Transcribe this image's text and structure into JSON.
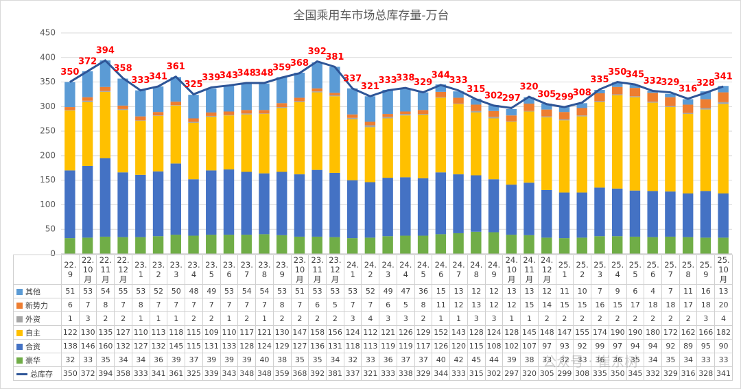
{
  "chart_data": {
    "type": "bar",
    "stacked": true,
    "title": "全国乘用车市场总库存量-万台",
    "watermark": "公众号 · 崔东树",
    "categories": [
      "22.9",
      "22.10月",
      "22.11月",
      "22.12月",
      "23.1",
      "23.2",
      "23.3",
      "23.4",
      "23.5",
      "23.6",
      "23.7",
      "23.8",
      "23.9",
      "23.10月",
      "23.11月",
      "23.12月",
      "24.1",
      "24.2",
      "24.3",
      "24.4",
      "24.5",
      "24.6",
      "24.7",
      "24.8",
      "24.9",
      "24.10月",
      "24.11月",
      "24.12月",
      "25.1",
      "25.2",
      "25.3",
      "25.4",
      "25.5",
      "25.6",
      "25.7",
      "25.8",
      "25.9",
      "25.10月"
    ],
    "ylim": [
      0,
      450
    ],
    "yticks": [
      0,
      50,
      100,
      150,
      200,
      250,
      300,
      350,
      400,
      450
    ],
    "grid": true,
    "series": [
      {
        "name": "其他",
        "color": "#5b9bd5",
        "values": [
          51,
          53,
          54,
          55,
          53,
          52,
          50,
          48,
          49,
          53,
          54,
          54,
          53,
          51,
          53,
          53,
          53,
          52,
          49,
          47,
          36,
          15,
          13,
          12,
          12,
          13,
          13,
          12,
          11,
          10,
          7,
          9,
          6,
          4,
          7,
          11,
          16,
          13
        ]
      },
      {
        "name": "新势力",
        "color": "#ed7d31",
        "values": [
          6,
          7,
          8,
          7,
          8,
          7,
          7,
          7,
          7,
          7,
          7,
          7,
          8,
          7,
          6,
          5,
          7,
          7,
          6,
          5,
          8,
          11,
          12,
          13,
          12,
          12,
          15,
          14,
          15,
          15,
          16,
          15,
          17,
          18,
          18,
          17,
          18,
          20
        ]
      },
      {
        "name": "外资",
        "color": "#a5a5a5",
        "values": [
          1,
          3,
          2,
          2,
          1,
          1,
          1,
          2,
          2,
          1,
          2,
          1,
          2,
          2,
          2,
          2,
          3,
          4,
          3,
          3,
          2,
          1,
          1,
          3,
          3,
          1,
          1,
          2,
          2,
          2,
          2,
          2,
          2,
          2,
          2,
          2,
          3,
          4
        ]
      },
      {
        "name": "自主",
        "color": "#ffc000",
        "values": [
          122,
          130,
          135,
          127,
          110,
          113,
          118,
          115,
          109,
          110,
          117,
          121,
          130,
          147,
          158,
          156,
          124,
          112,
          121,
          126,
          129,
          152,
          143,
          128,
          124,
          128,
          145,
          148,
          147,
          155,
          174,
          190,
          190,
          180,
          172,
          162,
          166,
          182
        ]
      },
      {
        "name": "合资",
        "color": "#4472c4",
        "values": [
          138,
          146,
          160,
          132,
          127,
          132,
          145,
          115,
          131,
          133,
          128,
          124,
          129,
          127,
          136,
          131,
          118,
          113,
          119,
          119,
          117,
          126,
          120,
          115,
          108,
          102,
          107,
          97,
          93,
          92,
          99,
          97,
          94,
          94,
          92,
          89,
          95,
          90
        ]
      },
      {
        "name": "豪华",
        "color": "#70ad47",
        "values": [
          32,
          33,
          35,
          34,
          34,
          36,
          39,
          37,
          39,
          39,
          39,
          40,
          38,
          35,
          35,
          34,
          32,
          33,
          36,
          37,
          37,
          40,
          42,
          45,
          44,
          39,
          38,
          33,
          32,
          33,
          36,
          36,
          35,
          34,
          35,
          34,
          33,
          33
        ]
      },
      {
        "name": "总库存",
        "type": "line",
        "color": "#2e5597",
        "label_color": "#ff0000",
        "values": [
          350,
          372,
          394,
          358,
          333,
          341,
          361,
          325,
          339,
          343,
          348,
          348,
          359,
          368,
          392,
          381,
          337,
          321,
          333,
          338,
          329,
          344,
          333,
          315,
          302,
          297,
          320,
          305,
          299,
          308,
          335,
          350,
          345,
          332,
          329,
          316,
          328,
          341
        ]
      }
    ]
  }
}
